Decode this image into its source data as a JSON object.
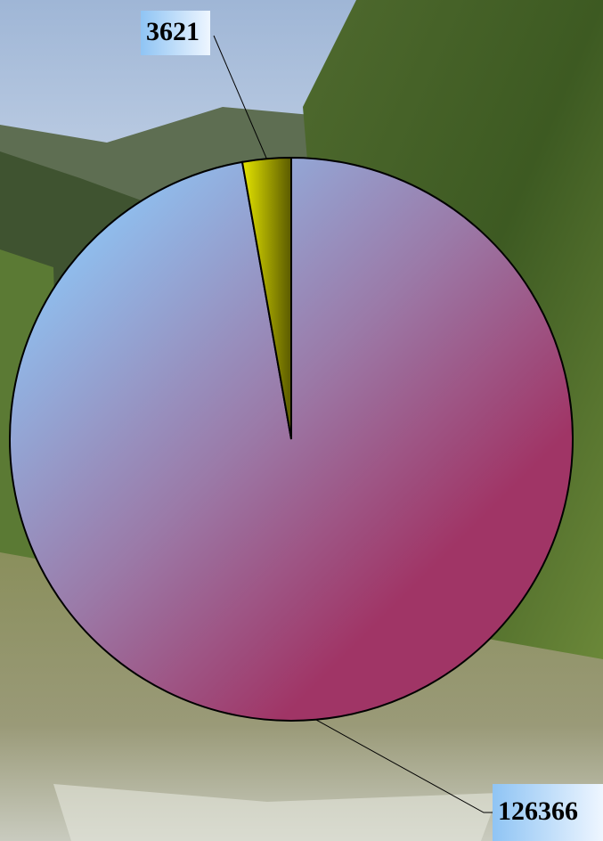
{
  "chart_data": {
    "type": "pie",
    "values": [
      126366,
      3621
    ],
    "colors": [
      "#a03566",
      "#e6e600"
    ]
  }
}
